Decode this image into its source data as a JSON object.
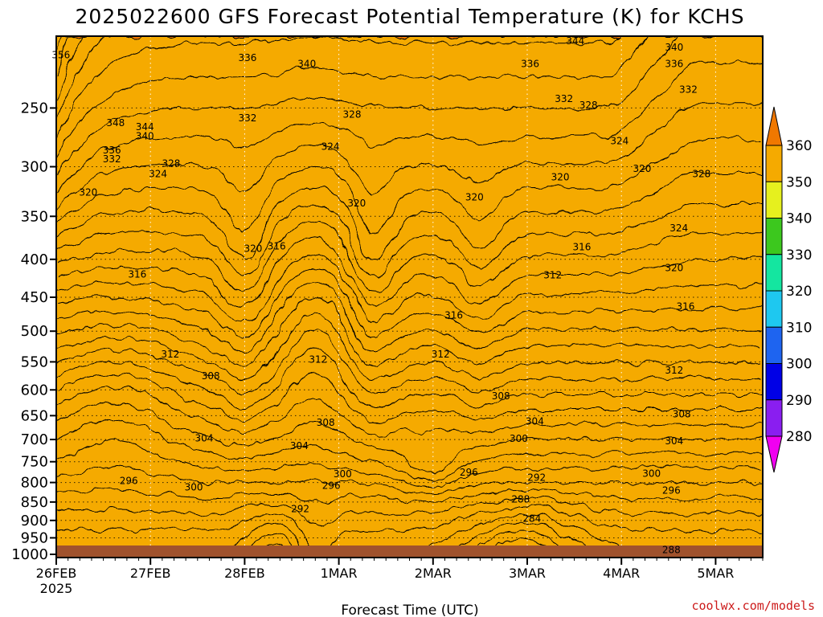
{
  "chart_data": {
    "type": "heatmap",
    "title": "2025022600 GFS Forecast Potential Temperature (K) for KCHS",
    "xlabel": "Forecast Time (UTC)",
    "ylabel": "",
    "x_ticks": [
      "26FEB",
      "27FEB",
      "28FEB",
      "1MAR",
      "2MAR",
      "3MAR",
      "4MAR",
      "5MAR"
    ],
    "x_tick_sub": "2025",
    "x_range_days": [
      0,
      7.5
    ],
    "y_ticks": [
      250,
      300,
      350,
      400,
      450,
      500,
      550,
      600,
      650,
      700,
      750,
      800,
      850,
      900,
      950,
      1000
    ],
    "y_range_hpa": [
      200,
      1010
    ],
    "y_scale": "log-pressure",
    "grid": true,
    "colorbar": {
      "levels": [
        280,
        290,
        300,
        310,
        320,
        330,
        340,
        350,
        360
      ],
      "colors": [
        "#f000f0",
        "#8a1ef0",
        "#0000e6",
        "#1e64f0",
        "#1ec8f0",
        "#14e6a0",
        "#3cc81e",
        "#e6f01e",
        "#f5aa00",
        "#f07800"
      ],
      "extend": "both",
      "placement": "right"
    },
    "contour_interval": 4,
    "contour_labels": [
      {
        "t": 0.05,
        "p": 212,
        "v": 356
      },
      {
        "t": 0.63,
        "p": 262,
        "v": 348
      },
      {
        "t": 0.94,
        "p": 265,
        "v": 344
      },
      {
        "t": 0.94,
        "p": 273,
        "v": 340
      },
      {
        "t": 0.59,
        "p": 285,
        "v": 336
      },
      {
        "t": 0.59,
        "p": 293,
        "v": 332
      },
      {
        "t": 1.22,
        "p": 297,
        "v": 328
      },
      {
        "t": 1.08,
        "p": 307,
        "v": 324
      },
      {
        "t": 0.34,
        "p": 325,
        "v": 320
      },
      {
        "t": 2.03,
        "p": 214,
        "v": 336
      },
      {
        "t": 2.66,
        "p": 218,
        "v": 340
      },
      {
        "t": 2.03,
        "p": 258,
        "v": 332
      },
      {
        "t": 3.14,
        "p": 255,
        "v": 328
      },
      {
        "t": 2.91,
        "p": 282,
        "v": 324
      },
      {
        "t": 3.19,
        "p": 336,
        "v": 320
      },
      {
        "t": 4.44,
        "p": 330,
        "v": 320
      },
      {
        "t": 2.09,
        "p": 387,
        "v": 320
      },
      {
        "t": 2.34,
        "p": 384,
        "v": 316
      },
      {
        "t": 5.35,
        "p": 310,
        "v": 320
      },
      {
        "t": 5.03,
        "p": 218,
        "v": 336
      },
      {
        "t": 5.51,
        "p": 203,
        "v": 344
      },
      {
        "t": 5.39,
        "p": 243,
        "v": 332
      },
      {
        "t": 5.65,
        "p": 248,
        "v": 328
      },
      {
        "t": 5.98,
        "p": 277,
        "v": 324
      },
      {
        "t": 6.22,
        "p": 302,
        "v": 320
      },
      {
        "t": 6.56,
        "p": 207,
        "v": 340
      },
      {
        "t": 6.56,
        "p": 218,
        "v": 336
      },
      {
        "t": 6.71,
        "p": 236,
        "v": 332
      },
      {
        "t": 6.85,
        "p": 307,
        "v": 328
      },
      {
        "t": 6.61,
        "p": 363,
        "v": 324
      },
      {
        "t": 6.56,
        "p": 411,
        "v": 320
      },
      {
        "t": 6.68,
        "p": 463,
        "v": 316
      },
      {
        "t": 0.86,
        "p": 419,
        "v": 316
      },
      {
        "t": 5.58,
        "p": 385,
        "v": 316
      },
      {
        "t": 4.22,
        "p": 476,
        "v": 316
      },
      {
        "t": 5.27,
        "p": 420,
        "v": 312
      },
      {
        "t": 1.21,
        "p": 537,
        "v": 312
      },
      {
        "t": 2.78,
        "p": 546,
        "v": 312
      },
      {
        "t": 4.08,
        "p": 537,
        "v": 312
      },
      {
        "t": 6.56,
        "p": 565,
        "v": 312
      },
      {
        "t": 1.64,
        "p": 575,
        "v": 308
      },
      {
        "t": 4.72,
        "p": 612,
        "v": 308
      },
      {
        "t": 2.86,
        "p": 664,
        "v": 308
      },
      {
        "t": 6.64,
        "p": 647,
        "v": 308
      },
      {
        "t": 1.57,
        "p": 697,
        "v": 304
      },
      {
        "t": 2.58,
        "p": 714,
        "v": 304
      },
      {
        "t": 5.08,
        "p": 662,
        "v": 304
      },
      {
        "t": 6.56,
        "p": 703,
        "v": 304
      },
      {
        "t": 4.91,
        "p": 698,
        "v": 300
      },
      {
        "t": 1.46,
        "p": 812,
        "v": 300
      },
      {
        "t": 3.04,
        "p": 779,
        "v": 300
      },
      {
        "t": 6.32,
        "p": 778,
        "v": 300
      },
      {
        "t": 0.77,
        "p": 796,
        "v": 296
      },
      {
        "t": 2.92,
        "p": 808,
        "v": 296
      },
      {
        "t": 4.38,
        "p": 775,
        "v": 296
      },
      {
        "t": 6.53,
        "p": 820,
        "v": 296
      },
      {
        "t": 5.1,
        "p": 788,
        "v": 292
      },
      {
        "t": 2.59,
        "p": 868,
        "v": 292
      },
      {
        "t": 4.93,
        "p": 843,
        "v": 288
      },
      {
        "t": 6.53,
        "p": 986,
        "v": 288
      },
      {
        "t": 5.05,
        "p": 895,
        "v": 284
      }
    ]
  },
  "credit": "coolwx.com/models"
}
